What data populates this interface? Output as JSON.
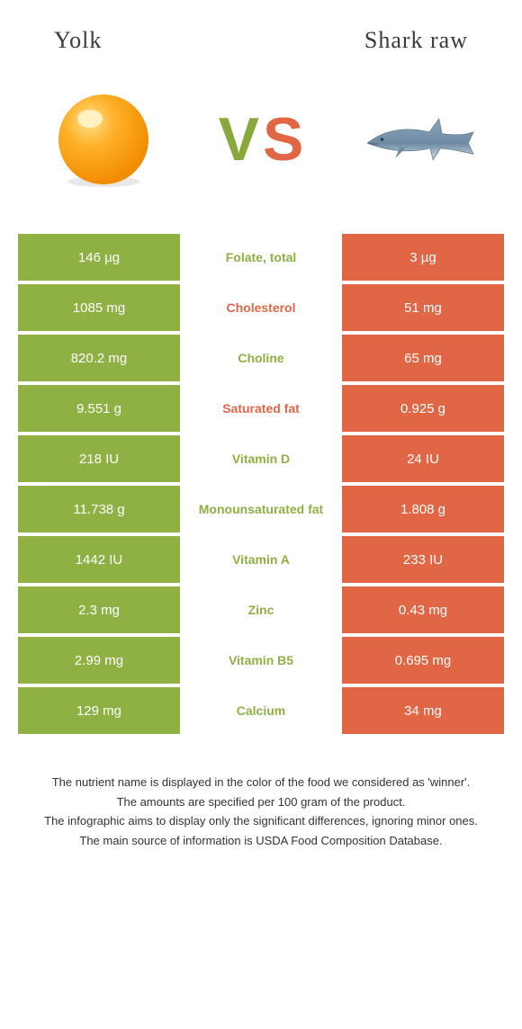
{
  "header": {
    "left_title": "Yolk",
    "right_title": "Shark raw"
  },
  "vs": {
    "v_color": "#88a93b",
    "s_color": "#e16645"
  },
  "colors": {
    "yolk_bg": "#8fb043",
    "shark_bg": "#e16645",
    "yolk_text": "#8fb043",
    "shark_text": "#e16645",
    "cell_text": "#ffffff"
  },
  "rows": [
    {
      "left": "146 µg",
      "label": "Folate, total",
      "right": "3 µg",
      "winner": "yolk"
    },
    {
      "left": "1085 mg",
      "label": "Cholesterol",
      "right": "51 mg",
      "winner": "shark"
    },
    {
      "left": "820.2 mg",
      "label": "Choline",
      "right": "65 mg",
      "winner": "yolk"
    },
    {
      "left": "9.551 g",
      "label": "Saturated fat",
      "right": "0.925 g",
      "winner": "shark"
    },
    {
      "left": "218 IU",
      "label": "Vitamin D",
      "right": "24 IU",
      "winner": "yolk"
    },
    {
      "left": "11.738 g",
      "label": "Monounsaturated fat",
      "right": "1.808 g",
      "winner": "yolk"
    },
    {
      "left": "1442 IU",
      "label": "Vitamin A",
      "right": "233 IU",
      "winner": "yolk"
    },
    {
      "left": "2.3 mg",
      "label": "Zinc",
      "right": "0.43 mg",
      "winner": "yolk"
    },
    {
      "left": "2.99 mg",
      "label": "Vitamin B5",
      "right": "0.695 mg",
      "winner": "yolk"
    },
    {
      "left": "129 mg",
      "label": "Calcium",
      "right": "34 mg",
      "winner": "yolk"
    }
  ],
  "footnote": {
    "l1": "The nutrient name is displayed in the color of the food we considered as 'winner'.",
    "l2": "The amounts are specified per 100 gram of the product.",
    "l3": "The infographic aims to display only the significant differences, ignoring minor ones.",
    "l4": "The main source of information is USDA Food Composition Database."
  }
}
